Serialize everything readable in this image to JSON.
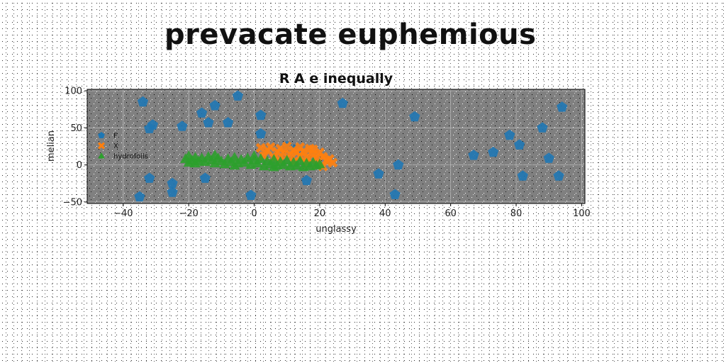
{
  "page_title": "prevacate euphemious",
  "chart_data": {
    "type": "scatter",
    "title": "R A e inequally",
    "xlabel": "unglassy",
    "ylabel": "melian",
    "xlim": [
      -51,
      101
    ],
    "ylim": [
      -52,
      102
    ],
    "xticks": [
      -40,
      -20,
      0,
      20,
      40,
      60,
      80,
      100
    ],
    "yticks": [
      -50,
      0,
      50,
      100
    ],
    "grid": true,
    "legend_position": "center-left",
    "background_color": "#808080",
    "series": [
      {
        "name": "F",
        "color": "#1f77b4",
        "marker": "pentagon",
        "points": [
          [
            -34,
            85
          ],
          [
            -31,
            54
          ],
          [
            -32,
            49
          ],
          [
            -12,
            80
          ],
          [
            -16,
            70
          ],
          [
            -14,
            57
          ],
          [
            -22,
            52
          ],
          [
            -8,
            57
          ],
          [
            -5,
            93
          ],
          [
            2,
            67
          ],
          [
            2,
            42
          ],
          [
            27,
            83
          ],
          [
            49,
            65
          ],
          [
            94,
            78
          ],
          [
            78,
            40
          ],
          [
            81,
            27
          ],
          [
            88,
            50
          ],
          [
            67,
            13
          ],
          [
            73,
            17
          ],
          [
            90,
            9
          ],
          [
            93,
            -15
          ],
          [
            82,
            -15
          ],
          [
            44,
            0
          ],
          [
            38,
            -12
          ],
          [
            43,
            -40
          ],
          [
            16,
            -21
          ],
          [
            -1,
            -41
          ],
          [
            -15,
            -18
          ],
          [
            -32,
            -18
          ],
          [
            -25,
            -25
          ],
          [
            -25,
            -37
          ],
          [
            -35,
            -43
          ],
          [
            10,
            25
          ],
          [
            13,
            22
          ]
        ]
      },
      {
        "name": "X",
        "color": "#ff7f0e",
        "marker": "x",
        "points": [
          [
            2,
            23
          ],
          [
            4,
            20
          ],
          [
            5,
            24
          ],
          [
            7,
            18
          ],
          [
            8,
            22
          ],
          [
            9,
            16
          ],
          [
            10,
            25
          ],
          [
            11,
            14
          ],
          [
            12,
            20
          ],
          [
            13,
            17
          ],
          [
            14,
            12
          ],
          [
            15,
            18
          ],
          [
            16,
            10
          ],
          [
            17,
            22
          ],
          [
            18,
            14
          ],
          [
            19,
            9
          ],
          [
            20,
            17
          ],
          [
            21,
            11
          ],
          [
            22,
            6
          ],
          [
            23,
            8
          ],
          [
            24,
            3
          ],
          [
            21,
            -2
          ],
          [
            19,
            1
          ],
          [
            16,
            2
          ],
          [
            12,
            4
          ],
          [
            8,
            6
          ],
          [
            6,
            10
          ],
          [
            3,
            12
          ],
          [
            18,
            21
          ],
          [
            14,
            24
          ]
        ]
      },
      {
        "name": "hydrofoils",
        "color": "#2ca02c",
        "marker": "triangle",
        "points": [
          [
            -21,
            8
          ],
          [
            -20,
            12
          ],
          [
            -20,
            3
          ],
          [
            -19,
            6
          ],
          [
            -18,
            10
          ],
          [
            -17,
            5
          ],
          [
            -16,
            9
          ],
          [
            -15,
            4
          ],
          [
            -14,
            11
          ],
          [
            -13,
            6
          ],
          [
            -12,
            2
          ],
          [
            -11,
            9
          ],
          [
            -10,
            5
          ],
          [
            -9,
            1
          ],
          [
            -8,
            8
          ],
          [
            -7,
            4
          ],
          [
            -6,
            10
          ],
          [
            -5,
            2
          ],
          [
            -4,
            7
          ],
          [
            -3,
            3
          ],
          [
            -2,
            9
          ],
          [
            -1,
            0
          ],
          [
            0,
            6
          ],
          [
            1,
            2
          ],
          [
            2,
            8
          ],
          [
            3,
            -2
          ],
          [
            4,
            5
          ],
          [
            5,
            1
          ],
          [
            6,
            7
          ],
          [
            7,
            -1
          ],
          [
            8,
            4
          ],
          [
            9,
            0
          ],
          [
            10,
            6
          ],
          [
            11,
            -2
          ],
          [
            12,
            3
          ],
          [
            13,
            -1
          ],
          [
            14,
            5
          ],
          [
            15,
            -3
          ],
          [
            16,
            2
          ],
          [
            17,
            -2
          ],
          [
            18,
            3
          ],
          [
            19,
            -1
          ],
          [
            20,
            1
          ],
          [
            -18,
            2
          ],
          [
            -12,
            13
          ],
          [
            -6,
            -1
          ],
          [
            0,
            12
          ],
          [
            6,
            -3
          ]
        ]
      }
    ]
  }
}
